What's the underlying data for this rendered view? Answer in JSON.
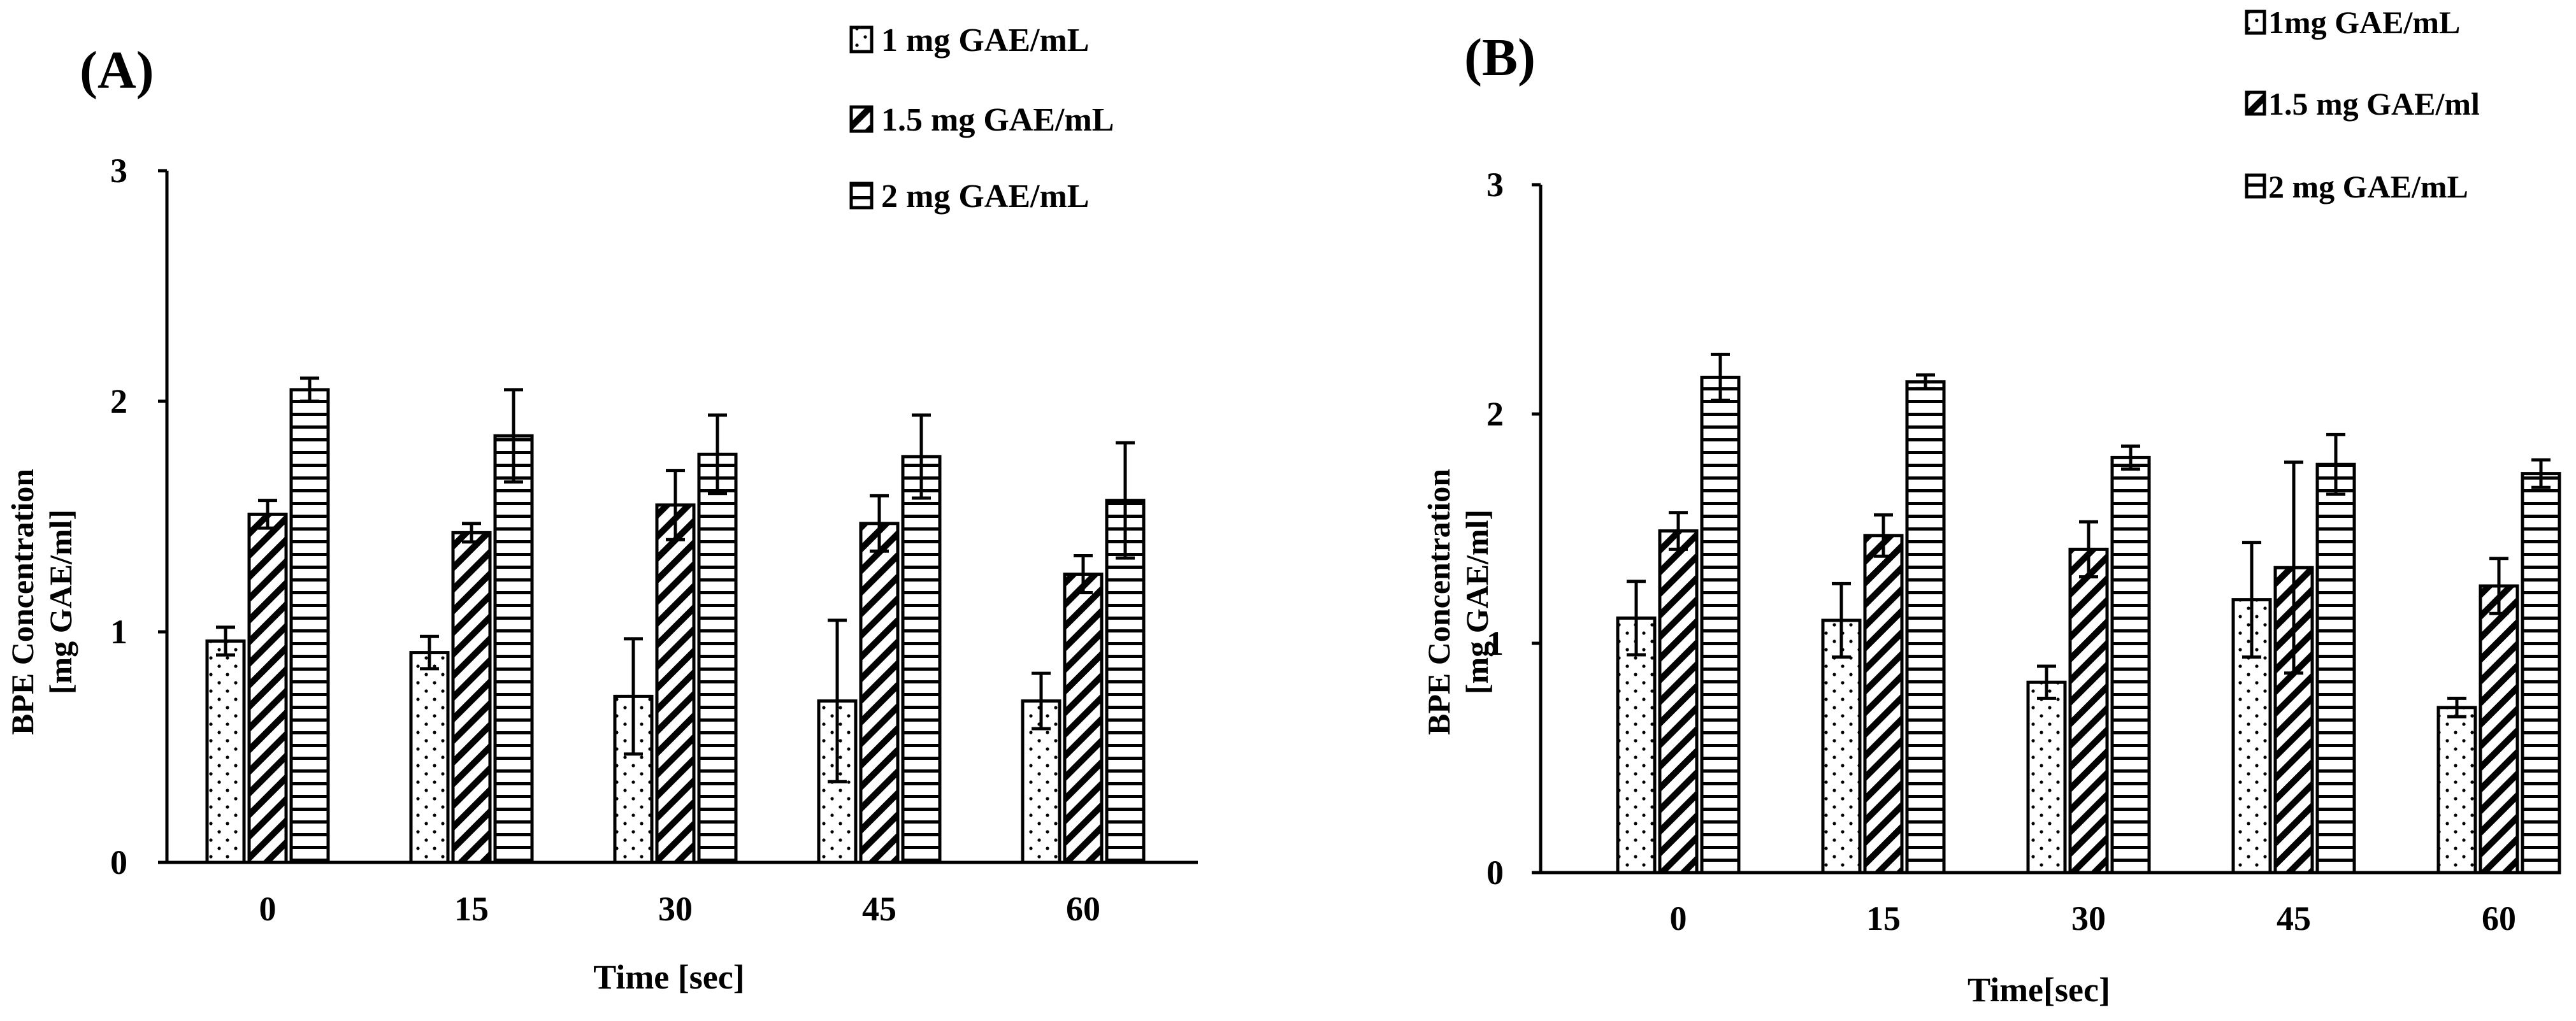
{
  "colors": {
    "ink": "#000000",
    "paper": "#ffffff"
  },
  "chart_data": [
    {
      "type": "bar",
      "panel_label": "(A)",
      "title": "",
      "xlabel": "Time [sec]",
      "ylabel": [
        "BPE Concentration",
        "[mg GAE/ml]"
      ],
      "categories": [
        "0",
        "15",
        "30",
        "45",
        "60"
      ],
      "ylim": [
        0,
        3
      ],
      "yticks": [
        "0",
        "1",
        "2",
        "3"
      ],
      "grid": false,
      "legend_position": "top-right",
      "series": [
        {
          "name": "1 mg GAE/mL",
          "pattern": "dots",
          "values": [
            0.96,
            0.91,
            0.72,
            0.7,
            0.7
          ],
          "errors": [
            0.06,
            0.07,
            0.25,
            0.35,
            0.12
          ]
        },
        {
          "name": "1.5 mg GAE/mL",
          "pattern": "diagonal",
          "values": [
            1.51,
            1.43,
            1.55,
            1.47,
            1.25
          ],
          "errors": [
            0.06,
            0.04,
            0.15,
            0.12,
            0.08
          ]
        },
        {
          "name": "2 mg GAE/mL",
          "pattern": "horizontal",
          "values": [
            2.05,
            1.85,
            1.77,
            1.76,
            1.57
          ],
          "errors": [
            0.05,
            0.2,
            0.17,
            0.18,
            0.25
          ]
        }
      ]
    },
    {
      "type": "bar",
      "panel_label": "(B)",
      "title": "",
      "xlabel": "Time[sec]",
      "ylabel": [
        "BPE Concentration",
        "[mg GAE/ml]"
      ],
      "categories": [
        "0",
        "15",
        "30",
        "45",
        "60"
      ],
      "ylim": [
        0,
        3
      ],
      "yticks": [
        "0",
        "1",
        "2",
        "3"
      ],
      "grid": false,
      "legend_position": "top-right",
      "series": [
        {
          "name": "1mg GAE/mL",
          "pattern": "dots",
          "values": [
            1.11,
            1.1,
            0.83,
            1.19,
            0.72
          ],
          "errors": [
            0.16,
            0.16,
            0.07,
            0.25,
            0.04
          ]
        },
        {
          "name": "1.5 mg GAE/ml",
          "pattern": "diagonal",
          "values": [
            1.49,
            1.47,
            1.41,
            1.33,
            1.25
          ],
          "errors": [
            0.08,
            0.09,
            0.12,
            0.46,
            0.12
          ]
        },
        {
          "name": "2 mg GAE/mL",
          "pattern": "horizontal",
          "values": [
            2.16,
            2.14,
            1.81,
            1.78,
            1.74
          ],
          "errors": [
            0.1,
            0.03,
            0.05,
            0.13,
            0.06
          ]
        }
      ]
    }
  ]
}
